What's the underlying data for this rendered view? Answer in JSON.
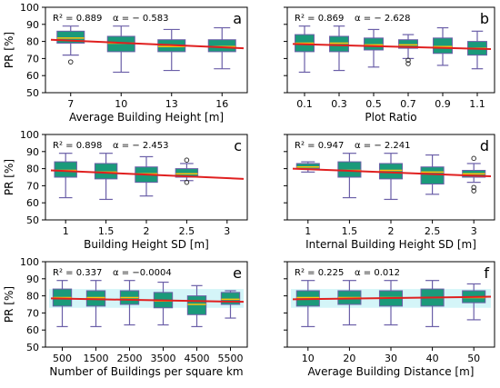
{
  "figure": {
    "shared_ylabel": "PR [%]",
    "ylim": [
      50,
      100
    ],
    "yticks": [
      "50",
      "60",
      "70",
      "80",
      "90",
      "100"
    ],
    "colors": {
      "box": "#1a9a7a",
      "median": "#ffc20e",
      "whisker": "#6b5fa8",
      "fit": "#e02020",
      "band": "#c9f3f6"
    }
  },
  "chart_data": [
    {
      "type": "box",
      "panel": "a",
      "xlabel": "Average Building Height [m]",
      "r2_text": "R² = 0.889",
      "alpha_text": "α = − 0.583",
      "categories": [
        "7",
        "10",
        "13",
        "16"
      ],
      "boxes": [
        {
          "whislo": 72,
          "q1": 79,
          "med": 82,
          "q3": 86,
          "whishi": 89,
          "fliers": [
            68
          ]
        },
        {
          "whislo": 62,
          "q1": 74,
          "med": 79,
          "q3": 83,
          "whishi": 89,
          "fliers": []
        },
        {
          "whislo": 63,
          "q1": 74,
          "med": 77,
          "q3": 81,
          "whishi": 87,
          "fliers": []
        },
        {
          "whislo": 64,
          "q1": 74,
          "med": 77,
          "q3": 81,
          "whishi": 88,
          "fliers": []
        }
      ],
      "fit": {
        "y_start": 81,
        "y_end": 76
      },
      "band": false
    },
    {
      "type": "box",
      "panel": "b",
      "xlabel": "Plot Ratio",
      "r2_text": "R² = 0.869",
      "alpha_text": "α = − 2.628",
      "categories": [
        "0.1",
        "0.3",
        "0.5",
        "0.7",
        "0.9",
        "1.1"
      ],
      "boxes": [
        {
          "whislo": 62,
          "q1": 74,
          "med": 79,
          "q3": 84,
          "whishi": 89,
          "fliers": []
        },
        {
          "whislo": 63,
          "q1": 74,
          "med": 79,
          "q3": 83,
          "whishi": 89,
          "fliers": []
        },
        {
          "whislo": 65,
          "q1": 75,
          "med": 78,
          "q3": 82,
          "whishi": 87,
          "fliers": []
        },
        {
          "whislo": 70,
          "q1": 76,
          "med": 78,
          "q3": 81,
          "whishi": 84,
          "fliers": [
            69,
            67
          ]
        },
        {
          "whislo": 66,
          "q1": 73,
          "med": 77,
          "q3": 82,
          "whishi": 88,
          "fliers": []
        },
        {
          "whislo": 64,
          "q1": 72,
          "med": 76,
          "q3": 80,
          "whishi": 86,
          "fliers": []
        }
      ],
      "fit": {
        "y_start": 78.5,
        "y_end": 75.5
      },
      "band": false
    },
    {
      "type": "box",
      "panel": "c",
      "xlabel": "Building Height SD [m]",
      "r2_text": "R² = 0.898",
      "alpha_text": "α = − 2.453",
      "categories": [
        "1",
        "1.5",
        "2",
        "2.5",
        "3"
      ],
      "boxes": [
        {
          "whislo": 63,
          "q1": 75,
          "med": 79,
          "q3": 84,
          "whishi": 89,
          "fliers": []
        },
        {
          "whislo": 62,
          "q1": 74,
          "med": 78,
          "q3": 83,
          "whishi": 89,
          "fliers": []
        },
        {
          "whislo": 64,
          "q1": 72,
          "med": 77,
          "q3": 81,
          "whishi": 87,
          "fliers": []
        },
        {
          "whislo": 73,
          "q1": 75,
          "med": 77,
          "q3": 80,
          "whishi": 83,
          "fliers": [
            85,
            72
          ]
        },
        null
      ],
      "fit": {
        "y_start": 79,
        "y_end": 74
      },
      "band": false
    },
    {
      "type": "box",
      "panel": "d",
      "xlabel": "Internal Building Height SD [m]",
      "r2_text": "R² = 0.947",
      "alpha_text": "α = − 2.241",
      "categories": [
        "1",
        "1.5",
        "2",
        "2.5",
        "3"
      ],
      "boxes": [
        {
          "whislo": 78,
          "q1": 80,
          "med": 81,
          "q3": 83,
          "whishi": 84,
          "fliers": []
        },
        {
          "whislo": 63,
          "q1": 75,
          "med": 79,
          "q3": 84,
          "whishi": 89,
          "fliers": []
        },
        {
          "whislo": 62,
          "q1": 74,
          "med": 79,
          "q3": 83,
          "whishi": 89,
          "fliers": []
        },
        {
          "whislo": 65,
          "q1": 71,
          "med": 78,
          "q3": 81,
          "whishi": 88,
          "fliers": []
        },
        {
          "whislo": 72,
          "q1": 75,
          "med": 77,
          "q3": 79,
          "whishi": 83,
          "fliers": [
            86,
            69,
            67
          ]
        }
      ],
      "fit": {
        "y_start": 80,
        "y_end": 75.5
      },
      "band": false
    },
    {
      "type": "box",
      "panel": "e",
      "xlabel": "Number of Buildings per square km",
      "r2_text": "R² = 0.337",
      "alpha_text": "α = −0.0004",
      "categories": [
        "500",
        "1500",
        "2500",
        "3500",
        "4500",
        "5500"
      ],
      "boxes": [
        {
          "whislo": 62,
          "q1": 74,
          "med": 79,
          "q3": 84,
          "whishi": 89,
          "fliers": []
        },
        {
          "whislo": 62,
          "q1": 74,
          "med": 79,
          "q3": 83,
          "whishi": 89,
          "fliers": []
        },
        {
          "whislo": 63,
          "q1": 75,
          "med": 79,
          "q3": 83,
          "whishi": 89,
          "fliers": []
        },
        {
          "whislo": 63,
          "q1": 73,
          "med": 77,
          "q3": 82,
          "whishi": 88,
          "fliers": []
        },
        {
          "whislo": 62,
          "q1": 69,
          "med": 75,
          "q3": 80,
          "whishi": 86,
          "fliers": []
        },
        {
          "whislo": 67,
          "q1": 75,
          "med": 78,
          "q3": 82,
          "whishi": 83,
          "fliers": []
        }
      ],
      "fit": {
        "y_start": 78.5,
        "y_end": 76.5
      },
      "band": true
    },
    {
      "type": "box",
      "panel": "f",
      "xlabel": "Average Building Distance [m]",
      "r2_text": "R² = 0.225",
      "alpha_text": "α = 0.012",
      "categories": [
        "10",
        "20",
        "30",
        "40",
        "50"
      ],
      "boxes": [
        {
          "whislo": 62,
          "q1": 74,
          "med": 79,
          "q3": 83,
          "whishi": 89,
          "fliers": []
        },
        {
          "whislo": 63,
          "q1": 75,
          "med": 79,
          "q3": 83,
          "whishi": 89,
          "fliers": []
        },
        {
          "whislo": 63,
          "q1": 74,
          "med": 79,
          "q3": 83,
          "whishi": 89,
          "fliers": []
        },
        {
          "whislo": 62,
          "q1": 74,
          "med": 79,
          "q3": 84,
          "whishi": 89,
          "fliers": []
        },
        {
          "whislo": 66,
          "q1": 76,
          "med": 79,
          "q3": 83,
          "whishi": 87,
          "fliers": []
        }
      ],
      "fit": {
        "y_start": 78,
        "y_end": 79.5
      },
      "band": true
    }
  ]
}
